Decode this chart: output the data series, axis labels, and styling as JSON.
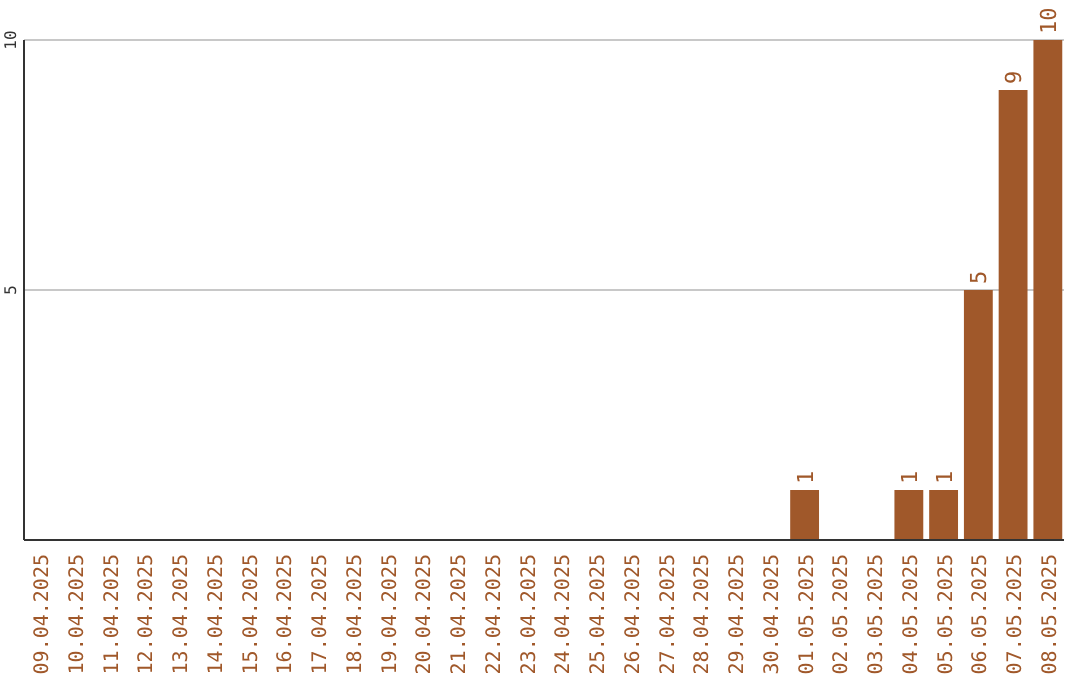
{
  "chart_data": {
    "type": "bar",
    "categories": [
      "09.04.2025",
      "10.04.2025",
      "11.04.2025",
      "12.04.2025",
      "13.04.2025",
      "14.04.2025",
      "15.04.2025",
      "16.04.2025",
      "17.04.2025",
      "18.04.2025",
      "19.04.2025",
      "20.04.2025",
      "21.04.2025",
      "22.04.2025",
      "23.04.2025",
      "24.04.2025",
      "25.04.2025",
      "26.04.2025",
      "27.04.2025",
      "28.04.2025",
      "29.04.2025",
      "30.04.2025",
      "01.05.2025",
      "02.05.2025",
      "03.05.2025",
      "04.05.2025",
      "05.05.2025",
      "06.05.2025",
      "07.05.2025",
      "08.05.2025"
    ],
    "values": [
      0,
      0,
      0,
      0,
      0,
      0,
      0,
      0,
      0,
      0,
      0,
      0,
      0,
      0,
      0,
      0,
      0,
      0,
      0,
      0,
      0,
      0,
      1,
      0,
      0,
      1,
      1,
      5,
      9,
      10
    ],
    "value_labels": [
      null,
      null,
      null,
      null,
      null,
      null,
      null,
      null,
      null,
      null,
      null,
      null,
      null,
      null,
      null,
      null,
      null,
      null,
      null,
      null,
      null,
      null,
      "1",
      null,
      null,
      "1",
      "1",
      "5",
      "9",
      "10"
    ],
    "color": "#a0582a",
    "ylim": [
      0,
      10
    ],
    "yticks": [
      5,
      10
    ],
    "grid": "y"
  }
}
